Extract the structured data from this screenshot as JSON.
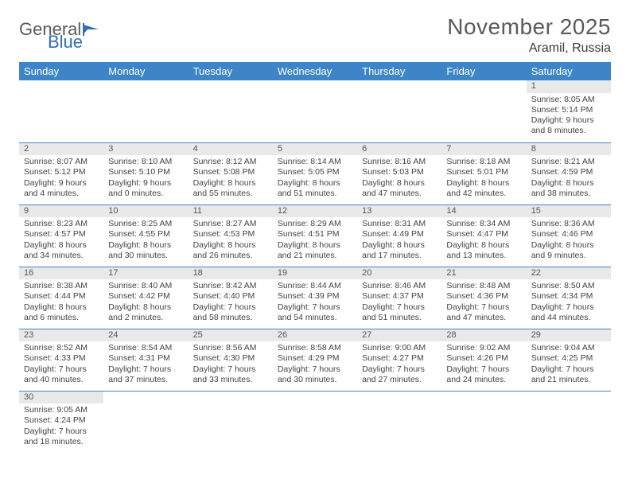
{
  "logo": {
    "text1": "General",
    "text2": "Blue"
  },
  "title": "November 2025",
  "location": "Aramil, Russia",
  "colors": {
    "header_bg": "#3d85c6",
    "header_fg": "#ffffff",
    "daynum_bg": "#e9e9e9",
    "rule": "#3d85c6",
    "text": "#444444",
    "title": "#5a5a5a"
  },
  "weekdays": [
    "Sunday",
    "Monday",
    "Tuesday",
    "Wednesday",
    "Thursday",
    "Friday",
    "Saturday"
  ],
  "weeks": [
    [
      null,
      null,
      null,
      null,
      null,
      null,
      {
        "n": "1",
        "sr": "Sunrise: 8:05 AM",
        "ss": "Sunset: 5:14 PM",
        "dl": "Daylight: 9 hours and 8 minutes."
      }
    ],
    [
      {
        "n": "2",
        "sr": "Sunrise: 8:07 AM",
        "ss": "Sunset: 5:12 PM",
        "dl": "Daylight: 9 hours and 4 minutes."
      },
      {
        "n": "3",
        "sr": "Sunrise: 8:10 AM",
        "ss": "Sunset: 5:10 PM",
        "dl": "Daylight: 9 hours and 0 minutes."
      },
      {
        "n": "4",
        "sr": "Sunrise: 8:12 AM",
        "ss": "Sunset: 5:08 PM",
        "dl": "Daylight: 8 hours and 55 minutes."
      },
      {
        "n": "5",
        "sr": "Sunrise: 8:14 AM",
        "ss": "Sunset: 5:05 PM",
        "dl": "Daylight: 8 hours and 51 minutes."
      },
      {
        "n": "6",
        "sr": "Sunrise: 8:16 AM",
        "ss": "Sunset: 5:03 PM",
        "dl": "Daylight: 8 hours and 47 minutes."
      },
      {
        "n": "7",
        "sr": "Sunrise: 8:18 AM",
        "ss": "Sunset: 5:01 PM",
        "dl": "Daylight: 8 hours and 42 minutes."
      },
      {
        "n": "8",
        "sr": "Sunrise: 8:21 AM",
        "ss": "Sunset: 4:59 PM",
        "dl": "Daylight: 8 hours and 38 minutes."
      }
    ],
    [
      {
        "n": "9",
        "sr": "Sunrise: 8:23 AM",
        "ss": "Sunset: 4:57 PM",
        "dl": "Daylight: 8 hours and 34 minutes."
      },
      {
        "n": "10",
        "sr": "Sunrise: 8:25 AM",
        "ss": "Sunset: 4:55 PM",
        "dl": "Daylight: 8 hours and 30 minutes."
      },
      {
        "n": "11",
        "sr": "Sunrise: 8:27 AM",
        "ss": "Sunset: 4:53 PM",
        "dl": "Daylight: 8 hours and 26 minutes."
      },
      {
        "n": "12",
        "sr": "Sunrise: 8:29 AM",
        "ss": "Sunset: 4:51 PM",
        "dl": "Daylight: 8 hours and 21 minutes."
      },
      {
        "n": "13",
        "sr": "Sunrise: 8:31 AM",
        "ss": "Sunset: 4:49 PM",
        "dl": "Daylight: 8 hours and 17 minutes."
      },
      {
        "n": "14",
        "sr": "Sunrise: 8:34 AM",
        "ss": "Sunset: 4:47 PM",
        "dl": "Daylight: 8 hours and 13 minutes."
      },
      {
        "n": "15",
        "sr": "Sunrise: 8:36 AM",
        "ss": "Sunset: 4:46 PM",
        "dl": "Daylight: 8 hours and 9 minutes."
      }
    ],
    [
      {
        "n": "16",
        "sr": "Sunrise: 8:38 AM",
        "ss": "Sunset: 4:44 PM",
        "dl": "Daylight: 8 hours and 6 minutes."
      },
      {
        "n": "17",
        "sr": "Sunrise: 8:40 AM",
        "ss": "Sunset: 4:42 PM",
        "dl": "Daylight: 8 hours and 2 minutes."
      },
      {
        "n": "18",
        "sr": "Sunrise: 8:42 AM",
        "ss": "Sunset: 4:40 PM",
        "dl": "Daylight: 7 hours and 58 minutes."
      },
      {
        "n": "19",
        "sr": "Sunrise: 8:44 AM",
        "ss": "Sunset: 4:39 PM",
        "dl": "Daylight: 7 hours and 54 minutes."
      },
      {
        "n": "20",
        "sr": "Sunrise: 8:46 AM",
        "ss": "Sunset: 4:37 PM",
        "dl": "Daylight: 7 hours and 51 minutes."
      },
      {
        "n": "21",
        "sr": "Sunrise: 8:48 AM",
        "ss": "Sunset: 4:36 PM",
        "dl": "Daylight: 7 hours and 47 minutes."
      },
      {
        "n": "22",
        "sr": "Sunrise: 8:50 AM",
        "ss": "Sunset: 4:34 PM",
        "dl": "Daylight: 7 hours and 44 minutes."
      }
    ],
    [
      {
        "n": "23",
        "sr": "Sunrise: 8:52 AM",
        "ss": "Sunset: 4:33 PM",
        "dl": "Daylight: 7 hours and 40 minutes."
      },
      {
        "n": "24",
        "sr": "Sunrise: 8:54 AM",
        "ss": "Sunset: 4:31 PM",
        "dl": "Daylight: 7 hours and 37 minutes."
      },
      {
        "n": "25",
        "sr": "Sunrise: 8:56 AM",
        "ss": "Sunset: 4:30 PM",
        "dl": "Daylight: 7 hours and 33 minutes."
      },
      {
        "n": "26",
        "sr": "Sunrise: 8:58 AM",
        "ss": "Sunset: 4:29 PM",
        "dl": "Daylight: 7 hours and 30 minutes."
      },
      {
        "n": "27",
        "sr": "Sunrise: 9:00 AM",
        "ss": "Sunset: 4:27 PM",
        "dl": "Daylight: 7 hours and 27 minutes."
      },
      {
        "n": "28",
        "sr": "Sunrise: 9:02 AM",
        "ss": "Sunset: 4:26 PM",
        "dl": "Daylight: 7 hours and 24 minutes."
      },
      {
        "n": "29",
        "sr": "Sunrise: 9:04 AM",
        "ss": "Sunset: 4:25 PM",
        "dl": "Daylight: 7 hours and 21 minutes."
      }
    ],
    [
      {
        "n": "30",
        "sr": "Sunrise: 9:05 AM",
        "ss": "Sunset: 4:24 PM",
        "dl": "Daylight: 7 hours and 18 minutes."
      },
      null,
      null,
      null,
      null,
      null,
      null
    ]
  ]
}
